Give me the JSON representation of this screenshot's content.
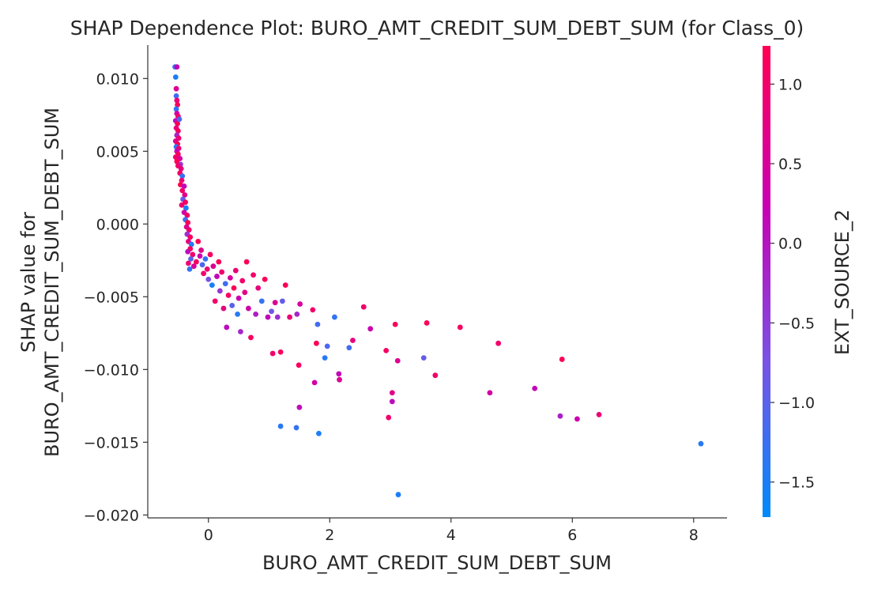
{
  "chart_data": {
    "type": "scatter",
    "title": "SHAP Dependence Plot: BURO_AMT_CREDIT_SUM_DEBT_SUM (for Class_0)",
    "xlabel": "BURO_AMT_CREDIT_SUM_DEBT_SUM",
    "ylabel_lines": [
      "SHAP value for",
      "BURO_AMT_CREDIT_SUM_DEBT_SUM"
    ],
    "xlim": [
      -1.0,
      8.55
    ],
    "ylim": [
      -0.0202,
      0.0123
    ],
    "x_ticks": [
      0,
      2,
      4,
      6,
      8
    ],
    "x_tick_labels": [
      "0",
      "2",
      "4",
      "6",
      "8"
    ],
    "y_ticks": [
      0.01,
      0.005,
      0.0,
      -0.005,
      -0.01,
      -0.015,
      -0.02
    ],
    "y_tick_labels": [
      "0.010",
      "0.005",
      "0.000",
      "−0.005",
      "−0.010",
      "−0.015",
      "−0.020"
    ],
    "grid": false,
    "colorbar": {
      "label": "EXT_SOURCE_2",
      "range": [
        -1.72,
        1.24
      ],
      "ticks": [
        1.0,
        0.5,
        0.0,
        -0.5,
        -1.0,
        -1.5
      ],
      "tick_labels": [
        "1.0",
        "0.5",
        "0.0",
        "−0.5",
        "−1.0",
        "−1.5"
      ],
      "colormap": [
        "#008bfb",
        "#7a52e6",
        "#c800b4",
        "#ff0052"
      ]
    },
    "points": [
      {
        "x": -0.55,
        "y": 0.0108,
        "c": -1.4
      },
      {
        "x": -0.52,
        "y": 0.0108,
        "c": 0.2
      },
      {
        "x": -0.54,
        "y": 0.0101,
        "c": -1.5
      },
      {
        "x": -0.53,
        "y": 0.0093,
        "c": 0.6
      },
      {
        "x": -0.53,
        "y": 0.0088,
        "c": -1.2
      },
      {
        "x": -0.52,
        "y": 0.0085,
        "c": 0.9
      },
      {
        "x": -0.51,
        "y": 0.0082,
        "c": 1.1
      },
      {
        "x": -0.53,
        "y": 0.0079,
        "c": -1.3
      },
      {
        "x": -0.52,
        "y": 0.0076,
        "c": 0.4
      },
      {
        "x": -0.5,
        "y": 0.0074,
        "c": 1.0
      },
      {
        "x": -0.54,
        "y": 0.0071,
        "c": 0.1
      },
      {
        "x": -0.51,
        "y": 0.0069,
        "c": 1.2
      },
      {
        "x": -0.48,
        "y": 0.0072,
        "c": -1.1
      },
      {
        "x": -0.53,
        "y": 0.0066,
        "c": 0.8
      },
      {
        "x": -0.5,
        "y": 0.0064,
        "c": 1.1
      },
      {
        "x": -0.52,
        "y": 0.0061,
        "c": -0.2
      },
      {
        "x": -0.49,
        "y": 0.0059,
        "c": 1.0
      },
      {
        "x": -0.54,
        "y": 0.0057,
        "c": 0.6
      },
      {
        "x": -0.51,
        "y": 0.0055,
        "c": 1.2
      },
      {
        "x": -0.53,
        "y": 0.0053,
        "c": -1.4
      },
      {
        "x": -0.49,
        "y": 0.0052,
        "c": 0.9
      },
      {
        "x": -0.52,
        "y": 0.005,
        "c": 0.3
      },
      {
        "x": -0.5,
        "y": 0.0048,
        "c": 1.1
      },
      {
        "x": -0.54,
        "y": 0.0046,
        "c": 1.0
      },
      {
        "x": -0.47,
        "y": 0.0045,
        "c": 0.5
      },
      {
        "x": -0.52,
        "y": 0.0043,
        "c": 1.2
      },
      {
        "x": -0.46,
        "y": 0.0041,
        "c": -0.4
      },
      {
        "x": -0.5,
        "y": 0.004,
        "c": 1.0
      },
      {
        "x": -0.45,
        "y": 0.0038,
        "c": 0.8
      },
      {
        "x": -0.47,
        "y": 0.0035,
        "c": 1.1
      },
      {
        "x": -0.43,
        "y": 0.0033,
        "c": -1.3
      },
      {
        "x": -0.44,
        "y": 0.003,
        "c": 0.9
      },
      {
        "x": -0.46,
        "y": 0.0027,
        "c": 1.2
      },
      {
        "x": -0.4,
        "y": 0.0026,
        "c": 0.2
      },
      {
        "x": -0.43,
        "y": 0.0023,
        "c": 1.0
      },
      {
        "x": -0.39,
        "y": 0.002,
        "c": 0.7
      },
      {
        "x": -0.42,
        "y": 0.0017,
        "c": -0.9
      },
      {
        "x": -0.38,
        "y": 0.0015,
        "c": 1.1
      },
      {
        "x": -0.44,
        "y": 0.0013,
        "c": 0.9
      },
      {
        "x": -0.37,
        "y": 0.0011,
        "c": -1.5
      },
      {
        "x": -0.4,
        "y": 0.0008,
        "c": 0.4
      },
      {
        "x": -0.35,
        "y": 0.0006,
        "c": 1.0
      },
      {
        "x": -0.38,
        "y": 0.0003,
        "c": -1.2
      },
      {
        "x": -0.34,
        "y": 0.0001,
        "c": 1.2
      },
      {
        "x": -0.36,
        "y": -0.0002,
        "c": 0.6
      },
      {
        "x": -0.32,
        "y": -0.0004,
        "c": 1.0
      },
      {
        "x": -0.35,
        "y": -0.0007,
        "c": -0.3
      },
      {
        "x": -0.3,
        "y": -0.0009,
        "c": 1.1
      },
      {
        "x": -0.33,
        "y": -0.0012,
        "c": 0.8
      },
      {
        "x": -0.28,
        "y": -0.0014,
        "c": -1.4
      },
      {
        "x": -0.3,
        "y": -0.0017,
        "c": 1.2
      },
      {
        "x": -0.34,
        "y": -0.0019,
        "c": 0.1
      },
      {
        "x": -0.26,
        "y": -0.0021,
        "c": 1.0
      },
      {
        "x": -0.29,
        "y": -0.0024,
        "c": -1.0
      },
      {
        "x": -0.33,
        "y": -0.0027,
        "c": 0.9
      },
      {
        "x": -0.31,
        "y": -0.0031,
        "c": -1.3
      },
      {
        "x": -0.24,
        "y": -0.0029,
        "c": 0.5
      },
      {
        "x": -0.2,
        "y": -0.0026,
        "c": 1.1
      },
      {
        "x": -0.17,
        "y": -0.0012,
        "c": 1.2
      },
      {
        "x": -0.14,
        "y": -0.0022,
        "c": 0.3
      },
      {
        "x": -0.1,
        "y": -0.0028,
        "c": -1.1
      },
      {
        "x": -0.08,
        "y": -0.0034,
        "c": 1.0
      },
      {
        "x": -0.12,
        "y": -0.0018,
        "c": 0.7
      },
      {
        "x": -0.05,
        "y": -0.0024,
        "c": -1.3
      },
      {
        "x": -0.02,
        "y": -0.0031,
        "c": 0.9
      },
      {
        "x": 0.0,
        "y": -0.0038,
        "c": -0.7
      },
      {
        "x": 0.03,
        "y": -0.0021,
        "c": 1.1
      },
      {
        "x": 0.06,
        "y": -0.0042,
        "c": -1.5
      },
      {
        "x": 0.08,
        "y": -0.0029,
        "c": 0.6
      },
      {
        "x": 0.11,
        "y": -0.0053,
        "c": 1.0
      },
      {
        "x": 0.14,
        "y": -0.0036,
        "c": 0.2
      },
      {
        "x": 0.17,
        "y": -0.0026,
        "c": 1.2
      },
      {
        "x": 0.19,
        "y": -0.0046,
        "c": -0.4
      },
      {
        "x": 0.22,
        "y": -0.0033,
        "c": 1.0
      },
      {
        "x": 0.25,
        "y": -0.0058,
        "c": 0.8
      },
      {
        "x": 0.28,
        "y": -0.0041,
        "c": -1.2
      },
      {
        "x": 0.3,
        "y": -0.0071,
        "c": 0.1
      },
      {
        "x": 0.33,
        "y": -0.0049,
        "c": 1.1
      },
      {
        "x": 0.36,
        "y": -0.0037,
        "c": 0.5
      },
      {
        "x": 0.39,
        "y": -0.0056,
        "c": -1.0
      },
      {
        "x": 0.42,
        "y": -0.0044,
        "c": 1.2
      },
      {
        "x": 0.45,
        "y": -0.0032,
        "c": 0.9
      },
      {
        "x": 0.48,
        "y": -0.0062,
        "c": -1.4
      },
      {
        "x": 0.5,
        "y": -0.0051,
        "c": 0.3
      },
      {
        "x": 0.53,
        "y": -0.0074,
        "c": -0.2
      },
      {
        "x": 0.56,
        "y": -0.0039,
        "c": 1.0
      },
      {
        "x": 0.6,
        "y": -0.0047,
        "c": 0.7
      },
      {
        "x": 0.63,
        "y": -0.0026,
        "c": 1.2
      },
      {
        "x": 0.66,
        "y": -0.0058,
        "c": 0.4
      },
      {
        "x": 0.7,
        "y": -0.0078,
        "c": 1.1
      },
      {
        "x": 0.74,
        "y": -0.0035,
        "c": 1.0
      },
      {
        "x": 0.78,
        "y": -0.0062,
        "c": -0.1
      },
      {
        "x": 0.82,
        "y": -0.0044,
        "c": 0.8
      },
      {
        "x": 0.88,
        "y": -0.0053,
        "c": -1.3
      },
      {
        "x": 0.93,
        "y": -0.0038,
        "c": 1.2
      },
      {
        "x": 0.98,
        "y": -0.0064,
        "c": 0.2
      },
      {
        "x": 1.04,
        "y": -0.006,
        "c": -0.8
      },
      {
        "x": 1.06,
        "y": -0.0089,
        "c": 1.0
      },
      {
        "x": 1.1,
        "y": -0.0054,
        "c": 0.6
      },
      {
        "x": 1.14,
        "y": -0.0064,
        "c": -0.3
      },
      {
        "x": 1.19,
        "y": -0.0088,
        "c": 1.1
      },
      {
        "x": 1.22,
        "y": -0.0053,
        "c": -0.9
      },
      {
        "x": 1.19,
        "y": -0.0139,
        "c": -1.4
      },
      {
        "x": 1.27,
        "y": -0.0042,
        "c": 1.2
      },
      {
        "x": 1.34,
        "y": -0.0064,
        "c": 0.9
      },
      {
        "x": 1.45,
        "y": -0.014,
        "c": -1.3
      },
      {
        "x": 1.46,
        "y": -0.0062,
        "c": -0.2
      },
      {
        "x": 1.49,
        "y": -0.0097,
        "c": 1.1
      },
      {
        "x": 1.5,
        "y": -0.0126,
        "c": 0.1
      },
      {
        "x": 1.51,
        "y": -0.0055,
        "c": 0.5
      },
      {
        "x": 1.72,
        "y": -0.0059,
        "c": 1.0
      },
      {
        "x": 1.75,
        "y": -0.0109,
        "c": 0.4
      },
      {
        "x": 1.78,
        "y": -0.0082,
        "c": 1.2
      },
      {
        "x": 1.82,
        "y": -0.0144,
        "c": -1.5
      },
      {
        "x": 1.8,
        "y": -0.0069,
        "c": -1.2
      },
      {
        "x": 1.92,
        "y": -0.0092,
        "c": -1.4
      },
      {
        "x": 1.96,
        "y": -0.0084,
        "c": -1.1
      },
      {
        "x": 2.08,
        "y": -0.0064,
        "c": -1.3
      },
      {
        "x": 2.15,
        "y": -0.0103,
        "c": 0.2
      },
      {
        "x": 2.16,
        "y": -0.0107,
        "c": 0.6
      },
      {
        "x": 2.32,
        "y": -0.0085,
        "c": -1.2
      },
      {
        "x": 2.38,
        "y": -0.008,
        "c": 0.8
      },
      {
        "x": 2.56,
        "y": -0.0057,
        "c": 1.0
      },
      {
        "x": 2.67,
        "y": -0.0072,
        "c": 0.3
      },
      {
        "x": 2.93,
        "y": -0.0087,
        "c": 1.1
      },
      {
        "x": 2.97,
        "y": -0.0133,
        "c": 1.0
      },
      {
        "x": 3.03,
        "y": -0.0116,
        "c": 0.7
      },
      {
        "x": 3.03,
        "y": -0.0122,
        "c": 0.1
      },
      {
        "x": 3.08,
        "y": -0.0069,
        "c": 1.2
      },
      {
        "x": 3.12,
        "y": -0.0094,
        "c": 0.6
      },
      {
        "x": 3.13,
        "y": -0.0186,
        "c": -1.5
      },
      {
        "x": 3.55,
        "y": -0.0092,
        "c": -0.9
      },
      {
        "x": 3.6,
        "y": -0.0068,
        "c": 1.2
      },
      {
        "x": 3.74,
        "y": -0.0104,
        "c": 1.0
      },
      {
        "x": 4.15,
        "y": -0.0071,
        "c": 1.1
      },
      {
        "x": 4.64,
        "y": -0.0116,
        "c": 0.4
      },
      {
        "x": 4.78,
        "y": -0.0082,
        "c": 1.0
      },
      {
        "x": 5.38,
        "y": -0.0113,
        "c": 0.2
      },
      {
        "x": 5.8,
        "y": -0.0132,
        "c": -0.1
      },
      {
        "x": 5.83,
        "y": -0.0093,
        "c": 1.2
      },
      {
        "x": 6.08,
        "y": -0.0134,
        "c": 0.3
      },
      {
        "x": 6.44,
        "y": -0.0131,
        "c": 0.9
      },
      {
        "x": 8.12,
        "y": -0.0151,
        "c": -1.4
      }
    ]
  }
}
